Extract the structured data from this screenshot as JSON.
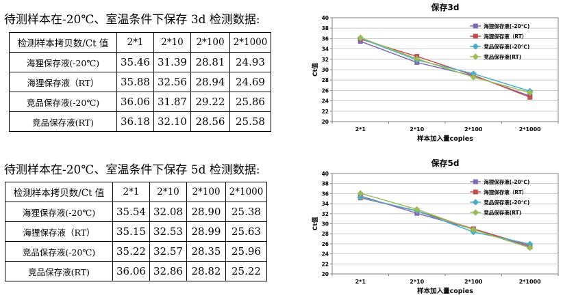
{
  "sections": [
    {
      "heading": "待测样本在-20℃、室温条件下保存 3d 检测数据:",
      "table": {
        "corner": "检测样本拷贝数/Ct 值",
        "columns": [
          "2*1",
          "2*10",
          "2*100",
          "2*1000"
        ],
        "rows": [
          {
            "label": "海狸保存液(-20℃)",
            "values": [
              "35.46",
              "31.39",
              "28.81",
              "24.93"
            ]
          },
          {
            "label": "海狸保存液（RT）",
            "values": [
              "35.88",
              "32.56",
              "28.94",
              "24.69"
            ]
          },
          {
            "label": "竞品保存液(-20℃)",
            "values": [
              "36.06",
              "31.87",
              "29.22",
              "25.86"
            ]
          },
          {
            "label": "竞品保存液(RT)",
            "values": [
              "36.18",
              "32.10",
              "28.56",
              "25.58"
            ]
          }
        ]
      }
    },
    {
      "heading": "待测样本在-20℃、室温条件下保存 5d 检测数据:",
      "table": {
        "corner": "检测样本拷贝数/Ct 值",
        "columns": [
          "2*1",
          "2*10",
          "2*100",
          "2*1000"
        ],
        "rows": [
          {
            "label": "海狸保存液(-20℃)",
            "values": [
              "35.54",
              "32.08",
              "28.90",
              "25.38"
            ]
          },
          {
            "label": "海狸保存液（RT）",
            "values": [
              "35.15",
              "32.53",
              "28.99",
              "25.63"
            ]
          },
          {
            "label": "竞品保存液(-20℃)",
            "values": [
              "35.22",
              "32.57",
              "28.35",
              "25.96"
            ]
          },
          {
            "label": "竞品保存液(RT)",
            "values": [
              "36.06",
              "32.86",
              "28.82",
              "25.22"
            ]
          }
        ]
      }
    }
  ],
  "chart_data": [
    {
      "type": "line",
      "title": "保存3d",
      "xlabel": "样本加入量copies",
      "ylabel": "Ct值",
      "categories": [
        "2*1",
        "2*10",
        "2*100",
        "2*1000"
      ],
      "ylim": [
        20,
        40
      ],
      "yticks": [
        "20",
        "22",
        "24",
        "26",
        "28",
        "30",
        "32",
        "34",
        "36",
        "38",
        "40"
      ],
      "grid": true,
      "legend_position": "top-right",
      "series": [
        {
          "name": "海狸保存液(-20℃)",
          "color": "#7b6bb0",
          "marker": "square",
          "values": [
            35.46,
            31.39,
            28.81,
            24.93
          ]
        },
        {
          "name": "海狸保存液（RT）",
          "color": "#c0504d",
          "marker": "square",
          "values": [
            35.88,
            32.56,
            28.94,
            24.69
          ]
        },
        {
          "name": "竞品保存液(-20℃)",
          "color": "#4bacc6",
          "marker": "diamond",
          "values": [
            36.06,
            31.87,
            29.22,
            25.86
          ]
        },
        {
          "name": "竞品保存液(RT)",
          "color": "#9bbb59",
          "marker": "diamond",
          "values": [
            36.18,
            32.1,
            28.56,
            25.58
          ]
        }
      ]
    },
    {
      "type": "line",
      "title": "保存5d",
      "xlabel": "样本加入量copies",
      "ylabel": "Ct值",
      "categories": [
        "2*1",
        "2*10",
        "2*100",
        "2*1000"
      ],
      "ylim": [
        20,
        40
      ],
      "yticks": [
        "20",
        "22",
        "24",
        "26",
        "28",
        "30",
        "32",
        "34",
        "36",
        "38",
        "40"
      ],
      "grid": true,
      "legend_position": "top-right",
      "series": [
        {
          "name": "海狸保存液(-20℃)",
          "color": "#7b6bb0",
          "marker": "square",
          "values": [
            35.54,
            32.08,
            28.9,
            25.38
          ]
        },
        {
          "name": "海狸保存液（RT）",
          "color": "#c0504d",
          "marker": "square",
          "values": [
            35.15,
            32.53,
            28.99,
            25.63
          ]
        },
        {
          "name": "竞品保存液(-20℃)",
          "color": "#4bacc6",
          "marker": "diamond",
          "values": [
            35.22,
            32.57,
            28.35,
            25.96
          ]
        },
        {
          "name": "竞品保存液(RT)",
          "color": "#9bbb59",
          "marker": "diamond",
          "values": [
            36.06,
            32.86,
            28.82,
            25.22
          ]
        }
      ]
    }
  ]
}
